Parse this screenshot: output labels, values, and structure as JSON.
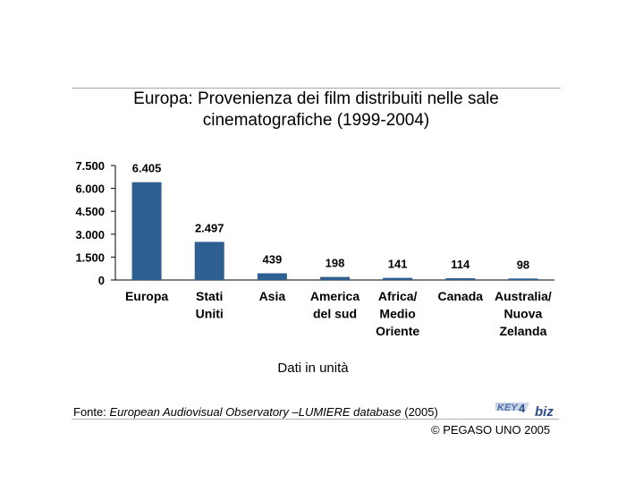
{
  "header": {
    "title_line1": "Europa: Provenienza dei film distribuiti nelle sale",
    "title_line2": "cinematografiche (1999-2004)"
  },
  "chart_data": {
    "type": "bar",
    "title": "Europa: Provenienza dei film distribuiti nelle sale cinematografiche (1999-2004)",
    "xlabel": "Dati in unità",
    "ylabel": "",
    "ylim": [
      0,
      7500
    ],
    "yticks": [
      0,
      1500,
      3000,
      4500,
      6000,
      7500
    ],
    "ytick_labels": [
      "0",
      "1.500",
      "3.000",
      "4.500",
      "6.000",
      "7.500"
    ],
    "categories": [
      [
        "Europa"
      ],
      [
        "Stati",
        "Uniti"
      ],
      [
        "Asia"
      ],
      [
        "America",
        "del sud"
      ],
      [
        "Africa/",
        "Medio",
        "Oriente"
      ],
      [
        "Canada"
      ],
      [
        "Australia/",
        "Nuova",
        "Zelanda"
      ]
    ],
    "values": [
      6405,
      2497,
      439,
      198,
      141,
      114,
      98
    ],
    "value_labels": [
      "6.405",
      "2.497",
      "439",
      "198",
      "141",
      "114",
      "98"
    ],
    "bar_color": "#2e5f93",
    "grid": false,
    "legend": "none"
  },
  "footer": {
    "source_prefix": "Fonte: ",
    "source_italic": "European Audiovisual Observatory –LUMIERE database",
    "source_suffix": " (2005)",
    "copyright": "© PEGASO UNO 2005",
    "logo_text_key": "KEY",
    "logo_text_num": "4",
    "logo_text_biz": "biz"
  }
}
